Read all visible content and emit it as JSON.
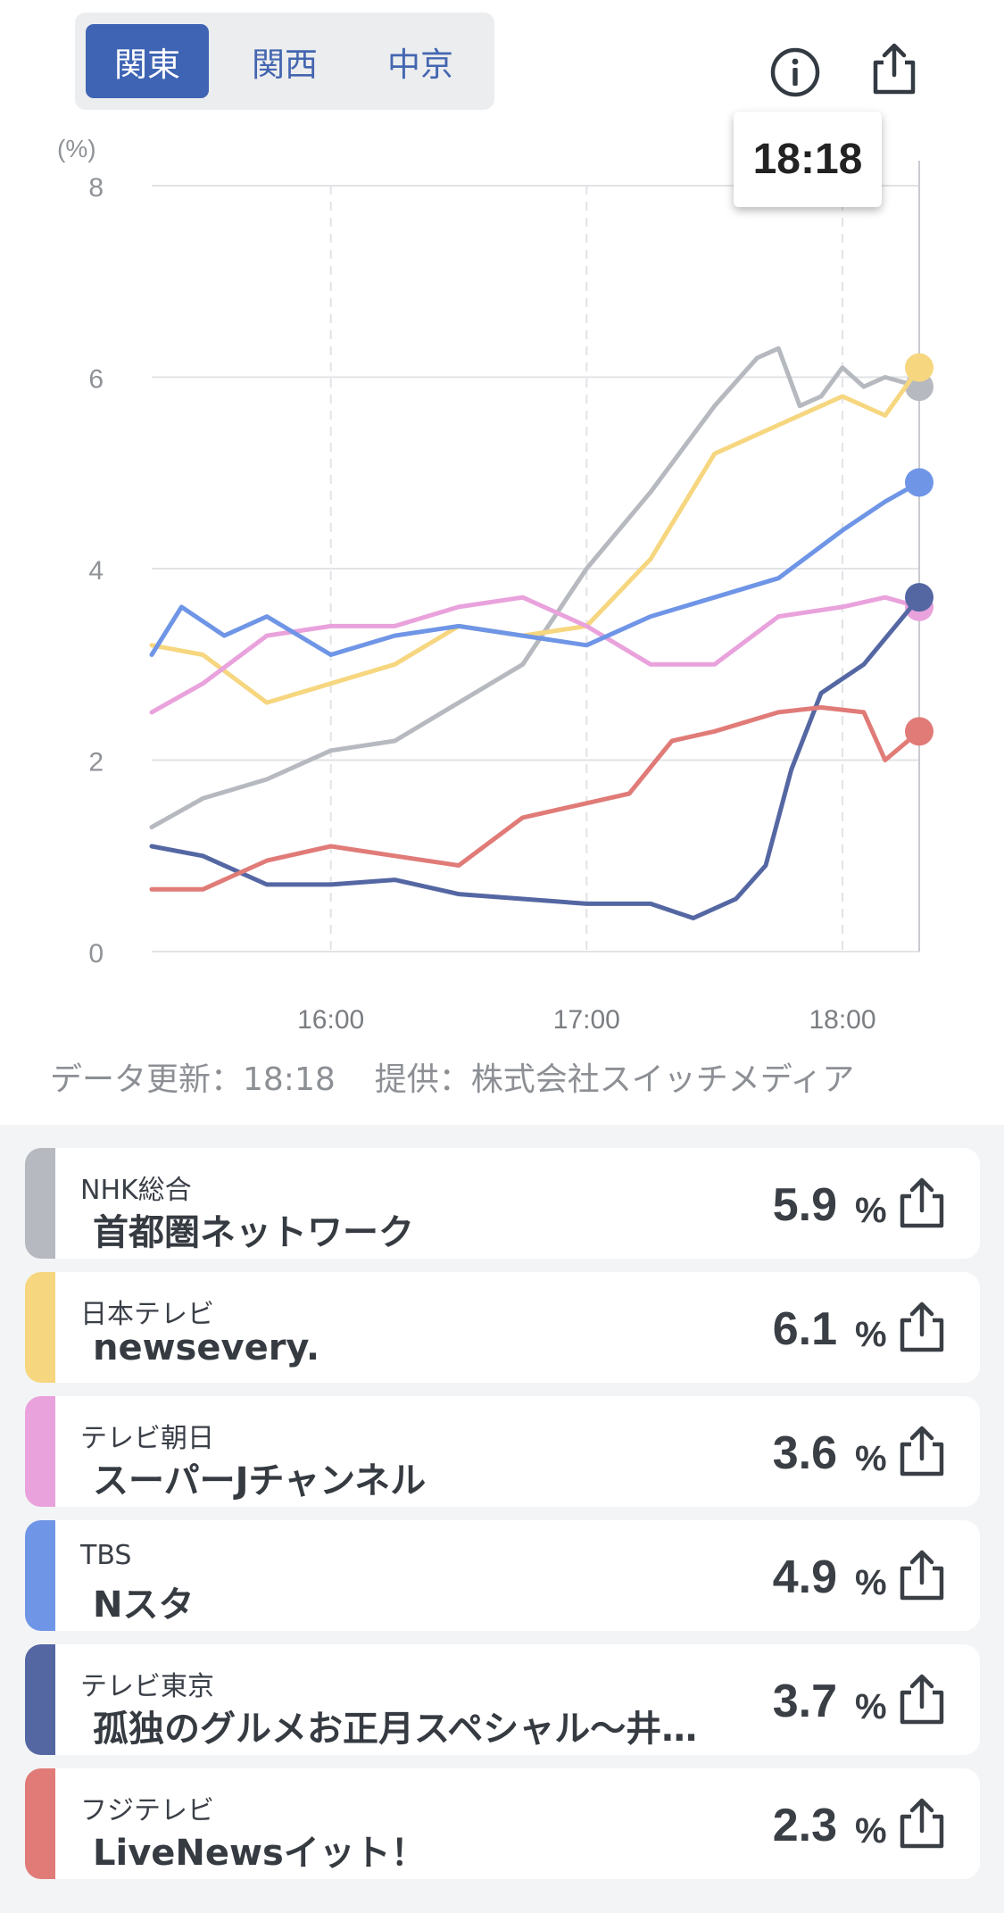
{
  "tabs": [
    {
      "label": "関東",
      "active": true
    },
    {
      "label": "関西",
      "active": false
    },
    {
      "label": "中京",
      "active": false
    }
  ],
  "header_icons": {
    "info": "info-icon",
    "share": "share-icon"
  },
  "tooltip": {
    "time": "18:18"
  },
  "footnote": {
    "updated": "データ更新：18:18",
    "provider": "提供：株式会社スイッチメディア"
  },
  "chart_data": {
    "type": "line",
    "ylabel": "(%)",
    "ylim": [
      0,
      8
    ],
    "yticks": [
      "0",
      "2",
      "4",
      "6",
      "8"
    ],
    "xlim": [
      "15:18",
      "18:18"
    ],
    "xticks": [
      "16:00",
      "17:00",
      "18:00"
    ],
    "grid": true,
    "series": [
      {
        "name": "NHK総合",
        "color": "#b6b9bf",
        "x": [
          "15:18",
          "15:30",
          "15:45",
          "16:00",
          "16:15",
          "16:30",
          "16:45",
          "17:00",
          "17:15",
          "17:30",
          "17:40",
          "17:45",
          "17:50",
          "17:55",
          "18:00",
          "18:05",
          "18:10",
          "18:18"
        ],
        "values": [
          1.3,
          1.6,
          1.8,
          2.1,
          2.2,
          2.6,
          3.0,
          4.0,
          4.8,
          5.7,
          6.2,
          6.3,
          5.7,
          5.8,
          6.1,
          5.9,
          6.0,
          5.9
        ]
      },
      {
        "name": "日本テレビ",
        "color": "#f6d67f",
        "x": [
          "15:18",
          "15:30",
          "15:45",
          "16:00",
          "16:15",
          "16:30",
          "16:45",
          "17:00",
          "17:15",
          "17:30",
          "17:45",
          "18:00",
          "18:10",
          "18:18"
        ],
        "values": [
          3.2,
          3.1,
          2.6,
          2.8,
          3.0,
          3.4,
          3.3,
          3.4,
          4.1,
          5.2,
          5.5,
          5.8,
          5.6,
          6.1
        ]
      },
      {
        "name": "テレビ朝日",
        "color": "#e9a2dc",
        "x": [
          "15:18",
          "15:30",
          "15:45",
          "16:00",
          "16:15",
          "16:30",
          "16:45",
          "17:00",
          "17:15",
          "17:30",
          "17:45",
          "18:00",
          "18:10",
          "18:18"
        ],
        "values": [
          2.5,
          2.8,
          3.3,
          3.4,
          3.4,
          3.6,
          3.7,
          3.4,
          3.0,
          3.0,
          3.5,
          3.6,
          3.7,
          3.6
        ]
      },
      {
        "name": "TBS",
        "color": "#6f95e6",
        "x": [
          "15:18",
          "15:25",
          "15:35",
          "15:45",
          "16:00",
          "16:15",
          "16:30",
          "16:45",
          "17:00",
          "17:15",
          "17:30",
          "17:45",
          "18:00",
          "18:10",
          "18:18"
        ],
        "values": [
          3.1,
          3.6,
          3.3,
          3.5,
          3.1,
          3.3,
          3.4,
          3.3,
          3.2,
          3.5,
          3.7,
          3.9,
          4.4,
          4.7,
          4.9
        ]
      },
      {
        "name": "テレビ東京",
        "color": "#5467a3",
        "x": [
          "15:18",
          "15:30",
          "15:45",
          "16:00",
          "16:15",
          "16:30",
          "16:45",
          "17:00",
          "17:15",
          "17:25",
          "17:35",
          "17:42",
          "17:48",
          "17:55",
          "18:05",
          "18:18"
        ],
        "values": [
          1.1,
          1.0,
          0.7,
          0.7,
          0.75,
          0.6,
          0.55,
          0.5,
          0.5,
          0.35,
          0.55,
          0.9,
          1.9,
          2.7,
          3.0,
          3.7
        ]
      },
      {
        "name": "フジテレビ",
        "color": "#e07b78",
        "x": [
          "15:18",
          "15:30",
          "15:45",
          "16:00",
          "16:15",
          "16:30",
          "16:45",
          "17:00",
          "17:10",
          "17:20",
          "17:30",
          "17:45",
          "17:55",
          "18:05",
          "18:10",
          "18:18"
        ],
        "values": [
          0.65,
          0.65,
          0.95,
          1.1,
          1.0,
          0.9,
          1.4,
          1.55,
          1.65,
          2.2,
          2.3,
          2.5,
          2.55,
          2.5,
          2.0,
          2.3
        ]
      }
    ]
  },
  "list": [
    {
      "channel": "NHK総合",
      "program": "首都圏ネットワーク",
      "value": "5.9",
      "unit": "%",
      "color": "#b6b9bf"
    },
    {
      "channel": "日本テレビ",
      "program": "newsevery.",
      "value": "6.1",
      "unit": "%",
      "color": "#f6d67f"
    },
    {
      "channel": "テレビ朝日",
      "program": "スーパーJチャンネル",
      "value": "3.6",
      "unit": "%",
      "color": "#e9a2dc"
    },
    {
      "channel": "TBS",
      "program": "Nスタ",
      "value": "4.9",
      "unit": "%",
      "color": "#6f95e6"
    },
    {
      "channel": "テレビ東京",
      "program": "孤独のグルメお正月スペシャル～井…",
      "value": "3.7",
      "unit": "%",
      "color": "#5467a3"
    },
    {
      "channel": "フジテレビ",
      "program": "LiveNewsイット！",
      "value": "2.3",
      "unit": "%",
      "color": "#e07b78"
    }
  ]
}
